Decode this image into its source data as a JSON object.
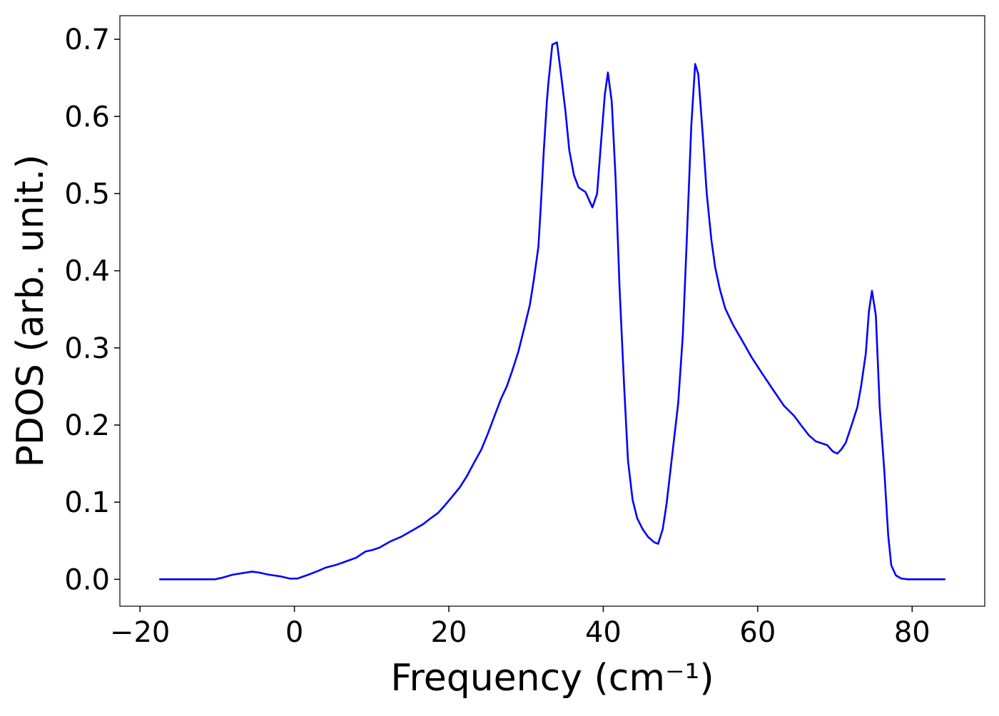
{
  "chart_data": {
    "type": "line",
    "xlabel": "Frequency (cm⁻¹)",
    "ylabel": "PDOS (arb. unit.)",
    "color": "#0000ff",
    "xlim": [
      -22.6,
      89.4
    ],
    "ylim": [
      -0.0348,
      0.7306
    ],
    "xticks": [
      {
        "value": -20,
        "label": "−20"
      },
      0,
      20,
      40,
      60,
      80
    ],
    "yticks": [
      {
        "value": 0,
        "label": "0.0"
      },
      0.1,
      0.2,
      0.3,
      0.4,
      0.5,
      0.6,
      0.7
    ],
    "x": [
      -17.5,
      -10.3,
      -9.4,
      -8,
      -5.5,
      -4.7,
      -3.3,
      -1.9,
      -0.6,
      0.4,
      1.8,
      3.1,
      4,
      5.5,
      6.9,
      8,
      9.2,
      10.1,
      11,
      12.4,
      13.8,
      15.2,
      16.6,
      17.5,
      18.6,
      19.5,
      20.5,
      21.4,
      22.3,
      23.2,
      24.2,
      25.1,
      26,
      26.8,
      27.5,
      28.2,
      29,
      29.7,
      30.5,
      31,
      31.6,
      31.9,
      32.3,
      32.7,
      32.9,
      33.4,
      34,
      34.5,
      35.1,
      35.6,
      36.2,
      36.8,
      37.7,
      38.6,
      39.2,
      39.7,
      40.2,
      40.6,
      41.1,
      41.6,
      42.1,
      42.7,
      43.2,
      43.8,
      44.4,
      45.1,
      45.8,
      46.6,
      47.1,
      47.7,
      48.2,
      48.8,
      49.7,
      50.3,
      50.8,
      51.4,
      51.9,
      52.3,
      52.9,
      53.4,
      54,
      54.5,
      55.1,
      55.8,
      56.8,
      57.9,
      59.2,
      60.5,
      61.9,
      63.4,
      64.7,
      65.6,
      66.6,
      67.5,
      68.4,
      69,
      69.7,
      70.3,
      70.8,
      71.4,
      72.1,
      72.9,
      73.4,
      74,
      74.4,
      74.8,
      75.3,
      75.8,
      76.4,
      76.9,
      77.3,
      77.9,
      78.6,
      79.5,
      84.3
    ],
    "values": [
      0,
      0,
      0.002,
      0.006,
      0.01,
      0.009,
      0.006,
      0.004,
      0.001,
      0.001,
      0.006,
      0.011,
      0.015,
      0.019,
      0.024,
      0.028,
      0.036,
      0.038,
      0.041,
      0.049,
      0.055,
      0.063,
      0.071,
      0.078,
      0.086,
      0.096,
      0.108,
      0.119,
      0.133,
      0.15,
      0.168,
      0.19,
      0.214,
      0.235,
      0.25,
      0.27,
      0.295,
      0.323,
      0.356,
      0.388,
      0.431,
      0.482,
      0.556,
      0.62,
      0.644,
      0.693,
      0.696,
      0.657,
      0.607,
      0.556,
      0.524,
      0.508,
      0.502,
      0.482,
      0.5,
      0.565,
      0.628,
      0.657,
      0.619,
      0.519,
      0.38,
      0.251,
      0.154,
      0.103,
      0.079,
      0.065,
      0.055,
      0.048,
      0.046,
      0.065,
      0.098,
      0.15,
      0.228,
      0.316,
      0.436,
      0.588,
      0.668,
      0.655,
      0.574,
      0.5,
      0.44,
      0.404,
      0.376,
      0.351,
      0.33,
      0.311,
      0.288,
      0.268,
      0.247,
      0.225,
      0.212,
      0.2,
      0.187,
      0.179,
      0.176,
      0.174,
      0.166,
      0.163,
      0.168,
      0.177,
      0.198,
      0.223,
      0.251,
      0.293,
      0.347,
      0.374,
      0.342,
      0.223,
      0.14,
      0.057,
      0.018,
      0.005,
      0.001,
      0,
      0
    ]
  }
}
